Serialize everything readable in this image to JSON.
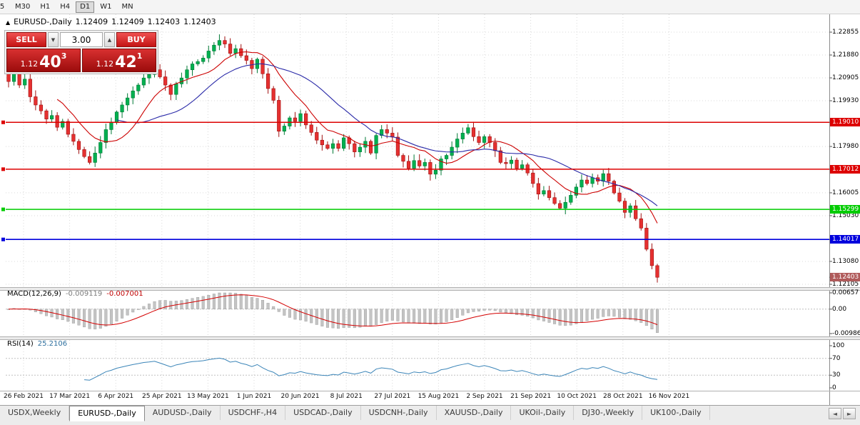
{
  "toolbar": {
    "timeframes": [
      {
        "label": "5",
        "active": false
      },
      {
        "label": "M30",
        "active": false
      },
      {
        "label": "H1",
        "active": false
      },
      {
        "label": "H4",
        "active": false
      },
      {
        "label": "D1",
        "active": true
      },
      {
        "label": "W1",
        "active": false
      },
      {
        "label": "MN",
        "active": false
      }
    ]
  },
  "quote": {
    "symbol": "EURUSD-,Daily",
    "open": "1.12409",
    "high": "1.12409",
    "low": "1.12403",
    "close": "1.12403"
  },
  "icons": {
    "panel_toggle": "▲",
    "spin_up": "▲",
    "spin_down": "▼",
    "tabs_left": "◄",
    "tabs_right": "►"
  },
  "trade_panel": {
    "sell_label": "SELL",
    "buy_label": "BUY",
    "volume": "3.00",
    "sell_price": {
      "base": "1.12",
      "big": "40",
      "sup": "3"
    },
    "buy_price": {
      "base": "1.12",
      "big": "42",
      "sup": "1"
    }
  },
  "axis": {
    "ticks": [
      {
        "label": "1.22855",
        "price": 1.22855
      },
      {
        "label": "1.21880",
        "price": 1.2188
      },
      {
        "label": "1.20905",
        "price": 1.20905
      },
      {
        "label": "1.19930",
        "price": 1.1993
      },
      {
        "label": "1.17980",
        "price": 1.1798
      },
      {
        "label": "1.16005",
        "price": 1.16005
      },
      {
        "label": "1.15030",
        "price": 1.1503
      },
      {
        "label": "1.13080",
        "price": 1.1308
      },
      {
        "label": "1.12105",
        "price": 1.12105
      }
    ],
    "badges": [
      {
        "label": "1.19010",
        "price": 1.1901,
        "bg": "#dd0000",
        "fg": "#ffffff"
      },
      {
        "label": "1.17012",
        "price": 1.17012,
        "bg": "#dd0000",
        "fg": "#ffffff"
      },
      {
        "label": "1.15299",
        "price": 1.15299,
        "bg": "#00cc00",
        "fg": "#ffffff"
      },
      {
        "label": "1.14017",
        "price": 1.14017,
        "bg": "#0000dd",
        "fg": "#ffffff"
      },
      {
        "label": "1.12403",
        "price": 1.12403,
        "bg": "#b05b5b",
        "fg": "#ffffff"
      }
    ]
  },
  "macd": {
    "label": "MACD(12,26,9)",
    "value": "-0.009119",
    "signal": "-0.007001",
    "scale": [
      {
        "label": "0.00657",
        "value": 0.00657
      },
      {
        "label": "0.00",
        "value": 0
      },
      {
        "label": "-0.00986",
        "value": -0.00986
      }
    ]
  },
  "rsi": {
    "label": "RSI(14)",
    "value": "25.2106",
    "levels": [
      70,
      30
    ],
    "scale": [
      {
        "label": "100",
        "value": 100
      },
      {
        "label": "70",
        "value": 70
      },
      {
        "label": "30",
        "value": 30
      },
      {
        "label": "0",
        "value": 0
      }
    ]
  },
  "tabs": [
    {
      "label": "USDX,Weekly",
      "active": false
    },
    {
      "label": "EURUSD-,Daily",
      "active": true
    },
    {
      "label": "AUDUSD-,Daily",
      "active": false
    },
    {
      "label": "USDCHF-,H4",
      "active": false
    },
    {
      "label": "USDCAD-,Daily",
      "active": false
    },
    {
      "label": "USDCNH-,Daily",
      "active": false
    },
    {
      "label": "XAUUSD-,Daily",
      "active": false
    },
    {
      "label": "UKOil-,Daily",
      "active": false
    },
    {
      "label": "DJ30-,Weekly",
      "active": false
    },
    {
      "label": "UK100-,Daily",
      "active": false
    }
  ],
  "chart_data": {
    "type": "candlestick",
    "symbol": "EURUSD-",
    "timeframe": "Daily",
    "current_price": "1.12403",
    "ylim": [
      1.12105,
      1.22855
    ],
    "x_labels": [
      "26 Feb 2021",
      "17 Mar 2021",
      "6 Apr 2021",
      "25 Apr 2021",
      "13 May 2021",
      "1 Jun 2021",
      "20 Jun 2021",
      "8 Jul 2021",
      "27 Jul 2021",
      "15 Aug 2021",
      "2 Sep 2021",
      "21 Sep 2021",
      "10 Oct 2021",
      "28 Oct 2021",
      "16 Nov 2021"
    ],
    "closes": [
      1.2075,
      1.211,
      1.206,
      1.2085,
      1.201,
      1.1975,
      1.195,
      1.1915,
      1.193,
      1.188,
      1.1905,
      1.185,
      1.182,
      1.1785,
      1.1755,
      1.173,
      1.177,
      1.1815,
      1.187,
      1.19,
      1.1945,
      1.1975,
      1.2005,
      1.2035,
      1.206,
      1.209,
      1.2105,
      1.2125,
      1.2095,
      1.206,
      1.202,
      1.2065,
      1.209,
      1.2125,
      1.215,
      1.216,
      1.2175,
      1.2205,
      1.223,
      1.225,
      1.2235,
      1.2195,
      1.2215,
      1.2185,
      1.2165,
      1.213,
      1.217,
      1.2108,
      1.2045,
      1.1995,
      1.1863,
      1.1885,
      1.192,
      1.1905,
      1.1938,
      1.189,
      1.1858,
      1.1825,
      1.1805,
      1.179,
      1.181,
      1.179,
      1.1835,
      1.181,
      1.1775,
      1.1795,
      1.182,
      1.177,
      1.1845,
      1.187,
      1.1855,
      1.1838,
      1.176,
      1.1735,
      1.1705,
      1.1738,
      1.1715,
      1.173,
      1.168,
      1.1697,
      1.1745,
      1.176,
      1.1795,
      1.183,
      1.1855,
      1.1878,
      1.184,
      1.1815,
      1.184,
      1.1815,
      1.178,
      1.173,
      1.1725,
      1.174,
      1.1705,
      1.172,
      1.1685,
      1.164,
      1.1595,
      1.161,
      1.158,
      1.1555,
      1.1535,
      1.156,
      1.159,
      1.1625,
      1.1655,
      1.164,
      1.1665,
      1.165,
      1.1682,
      1.165,
      1.16,
      1.1565,
      1.1517,
      1.1545,
      1.149,
      1.145,
      1.136,
      1.129,
      1.12403
    ],
    "hlines": [
      {
        "price": 1.1901,
        "color": "#dd0000"
      },
      {
        "price": 1.17012,
        "color": "#dd0000"
      },
      {
        "price": 1.15299,
        "color": "#00cc00"
      },
      {
        "price": 1.14017,
        "color": "#0000dd"
      }
    ],
    "overlays": [
      {
        "name": "MA fast",
        "type": "sma",
        "period": 10,
        "color": "#cc0000"
      },
      {
        "name": "MA slow",
        "type": "sma",
        "period": 21,
        "color": "#2a2aa8"
      }
    ],
    "indicators": [
      {
        "name": "MACD",
        "params": [
          12,
          26,
          9
        ]
      },
      {
        "name": "RSI",
        "params": [
          14
        ]
      }
    ],
    "colors": {
      "up": "#00b050",
      "up_stroke": "#007a35",
      "down": "#e53030",
      "down_stroke": "#a01010",
      "grid": "#d9d9d9",
      "hist": "#c4c4c4",
      "hist_stroke": "#9a9a9a",
      "signal": "#d40000",
      "rsi_line": "#3b85b8"
    }
  }
}
